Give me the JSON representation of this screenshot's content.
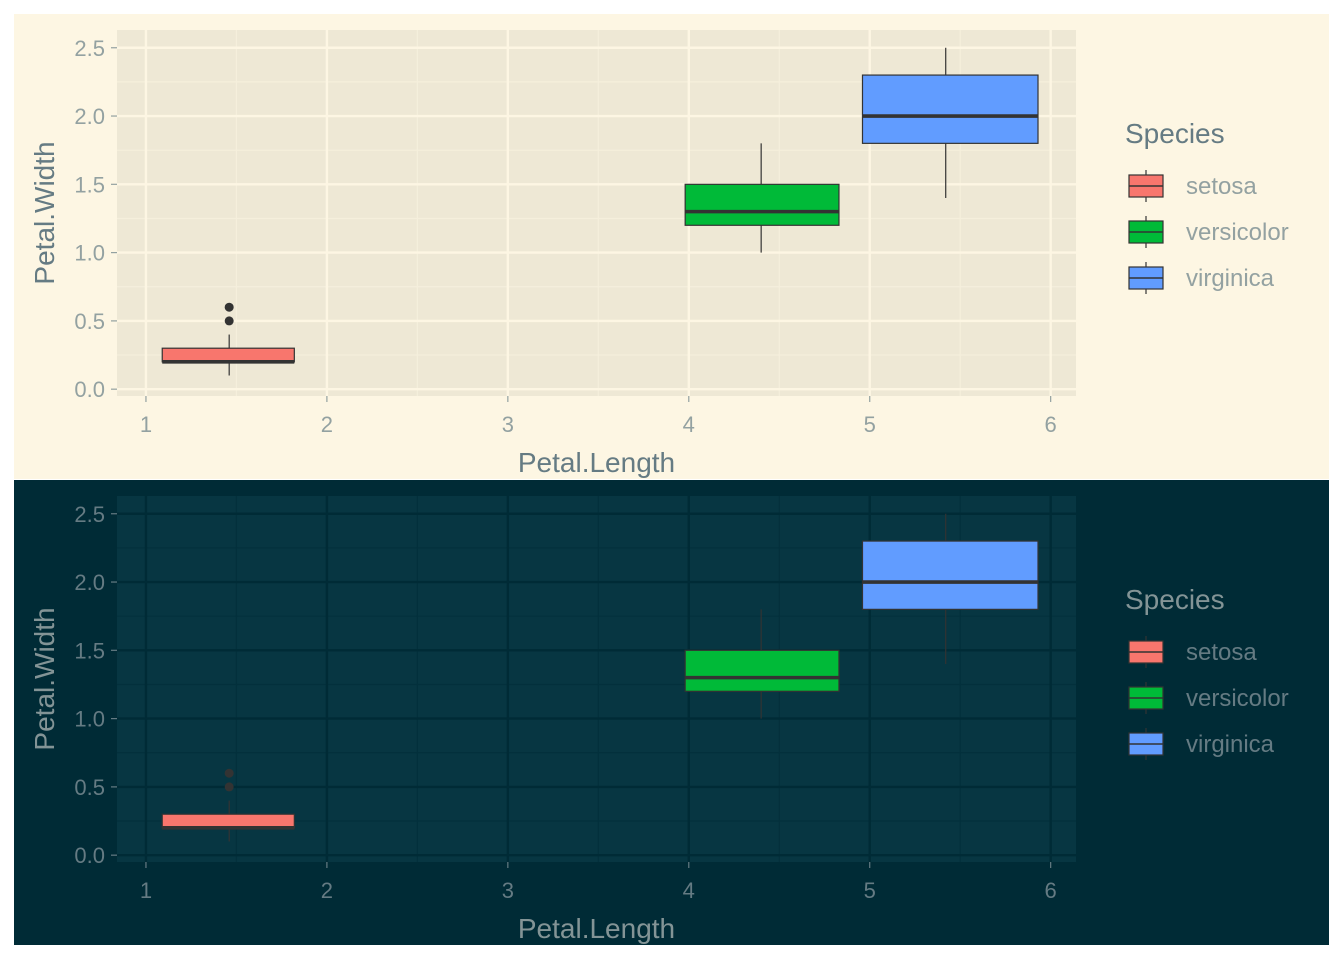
{
  "themes": {
    "light": {
      "panel_background": "#fdf6e3",
      "plot_background": "#eee8d5",
      "grid_major": "#fdf6e3",
      "grid_minor": "#f5efdc",
      "axis_text": "#93a1a1",
      "axis_title": "#657b83",
      "box_outline": "#333333"
    },
    "dark": {
      "panel_background": "#002b36",
      "plot_background": "#073642",
      "grid_major": "#002b36",
      "grid_minor": "#03303c",
      "axis_text": "#657b83",
      "axis_title": "#839496",
      "box_outline": "#333333"
    }
  },
  "chart_data": [
    {
      "type": "box",
      "theme": "light",
      "xlabel": "Petal.Length",
      "ylabel": "Petal.Width",
      "xlim": [
        0.84,
        6.14
      ],
      "ylim": [
        -0.05,
        2.63
      ],
      "x_ticks": [
        "1",
        "2",
        "3",
        "4",
        "5",
        "6"
      ],
      "y_ticks": [
        "0.0",
        "0.5",
        "1.0",
        "1.5",
        "2.0",
        "2.5"
      ],
      "grid": true,
      "legend": {
        "title": "Species",
        "position": "right",
        "items": [
          "setosa",
          "versicolor",
          "virginica"
        ]
      },
      "series": [
        {
          "name": "setosa",
          "color": "#F8766D",
          "x_min": 1.09,
          "x_max": 1.82,
          "x_center": 1.46,
          "lower_whisker": 0.1,
          "q1": 0.2,
          "median": 0.2,
          "q3": 0.3,
          "upper_whisker": 0.4,
          "outliers": [
            0.5,
            0.6
          ]
        },
        {
          "name": "versicolor",
          "color": "#00BA38",
          "x_min": 3.98,
          "x_max": 4.83,
          "x_center": 4.4,
          "lower_whisker": 1.0,
          "q1": 1.2,
          "median": 1.3,
          "q3": 1.5,
          "upper_whisker": 1.8,
          "outliers": []
        },
        {
          "name": "virginica",
          "color": "#619CFF",
          "x_min": 4.96,
          "x_max": 5.93,
          "x_center": 5.42,
          "lower_whisker": 1.4,
          "q1": 1.8,
          "median": 2.0,
          "q3": 2.3,
          "upper_whisker": 2.5,
          "outliers": []
        }
      ]
    },
    {
      "type": "box",
      "theme": "dark",
      "xlabel": "Petal.Length",
      "ylabel": "Petal.Width",
      "xlim": [
        0.84,
        6.14
      ],
      "ylim": [
        -0.05,
        2.63
      ],
      "x_ticks": [
        "1",
        "2",
        "3",
        "4",
        "5",
        "6"
      ],
      "y_ticks": [
        "0.0",
        "0.5",
        "1.0",
        "1.5",
        "2.0",
        "2.5"
      ],
      "grid": true,
      "legend": {
        "title": "Species",
        "position": "right",
        "items": [
          "setosa",
          "versicolor",
          "virginica"
        ]
      },
      "series": [
        {
          "name": "setosa",
          "color": "#F8766D",
          "x_min": 1.09,
          "x_max": 1.82,
          "x_center": 1.46,
          "lower_whisker": 0.1,
          "q1": 0.2,
          "median": 0.2,
          "q3": 0.3,
          "upper_whisker": 0.4,
          "outliers": [
            0.5,
            0.6
          ]
        },
        {
          "name": "versicolor",
          "color": "#00BA38",
          "x_min": 3.98,
          "x_max": 4.83,
          "x_center": 4.4,
          "lower_whisker": 1.0,
          "q1": 1.2,
          "median": 1.3,
          "q3": 1.5,
          "upper_whisker": 1.8,
          "outliers": []
        },
        {
          "name": "virginica",
          "color": "#619CFF",
          "x_min": 4.96,
          "x_max": 5.93,
          "x_center": 5.42,
          "lower_whisker": 1.4,
          "q1": 1.8,
          "median": 2.0,
          "q3": 2.3,
          "upper_whisker": 2.5,
          "outliers": []
        }
      ]
    }
  ]
}
